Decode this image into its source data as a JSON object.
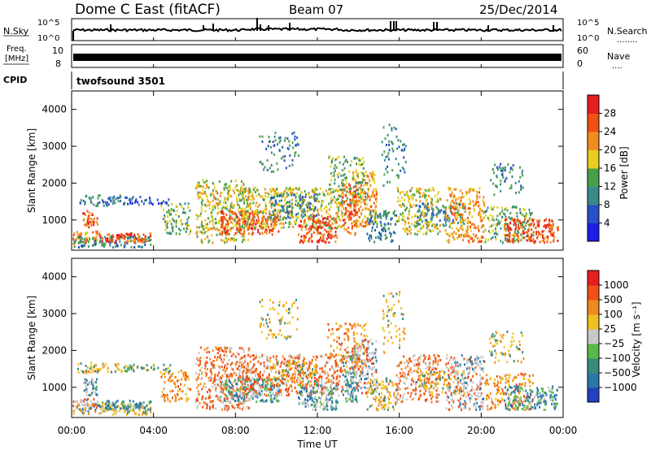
{
  "header": {
    "title": "Dome C East (fitACF)",
    "beam": "Beam 07",
    "date": "25/Dec/2014"
  },
  "side_labels": {
    "nsky": "N.Sky",
    "nsearch": "N.Search",
    "nsearch_dots": "........",
    "freq_line1": "Freq.",
    "freq_line2": "[MHz]",
    "nave": "Nave",
    "nave_dots": "....",
    "cpid": "CPID"
  },
  "top_panels": {
    "noise_left_ticks": [
      "10^5",
      "10^0"
    ],
    "noise_right_ticks": [
      "10^5",
      "10^0"
    ],
    "freq_left_ticks": [
      "10",
      "8"
    ],
    "freq_right_ticks": [
      "60",
      "0"
    ],
    "program": "twofsound 3501"
  },
  "chart_data": [
    {
      "type": "heatmap",
      "name": "power",
      "ylabel": "Slant Range [km]",
      "yticks": [
        "4000",
        "3000",
        "2000",
        "1000"
      ],
      "ylim": [
        180,
        4500
      ],
      "colorbar_label": "Power [dB]",
      "colorbar_ticks": [
        "28",
        "24",
        "20",
        "16",
        "12",
        "8",
        "4"
      ],
      "colors": [
        "#1e1ee6",
        "#2850c8",
        "#3a8a8a",
        "#49a04a",
        "#e6cf1e",
        "#f08c1e",
        "#f05010",
        "#e61e1e"
      ]
    },
    {
      "type": "heatmap",
      "name": "velocity",
      "ylabel": "Slant Range [km]",
      "yticks": [
        "4000",
        "3000",
        "2000",
        "1000"
      ],
      "ylim": [
        180,
        4500
      ],
      "colorbar_label": "Velocity [m s⁻¹]",
      "colorbar_ticks": [
        "1000",
        "500",
        "100",
        "25",
        "−25",
        "−100",
        "−500",
        "−1000"
      ],
      "colors": [
        "#2240c0",
        "#2a78a8",
        "#3a8a7a",
        "#5ab84a",
        "#c8c8c8",
        "#f0c020",
        "#f08a1e",
        "#f05018",
        "#e61e1e"
      ]
    }
  ],
  "xaxis": {
    "label": "Time UT",
    "ticks": [
      "00:00",
      "04:00",
      "08:00",
      "12:00",
      "16:00",
      "20:00",
      "00:00"
    ]
  }
}
